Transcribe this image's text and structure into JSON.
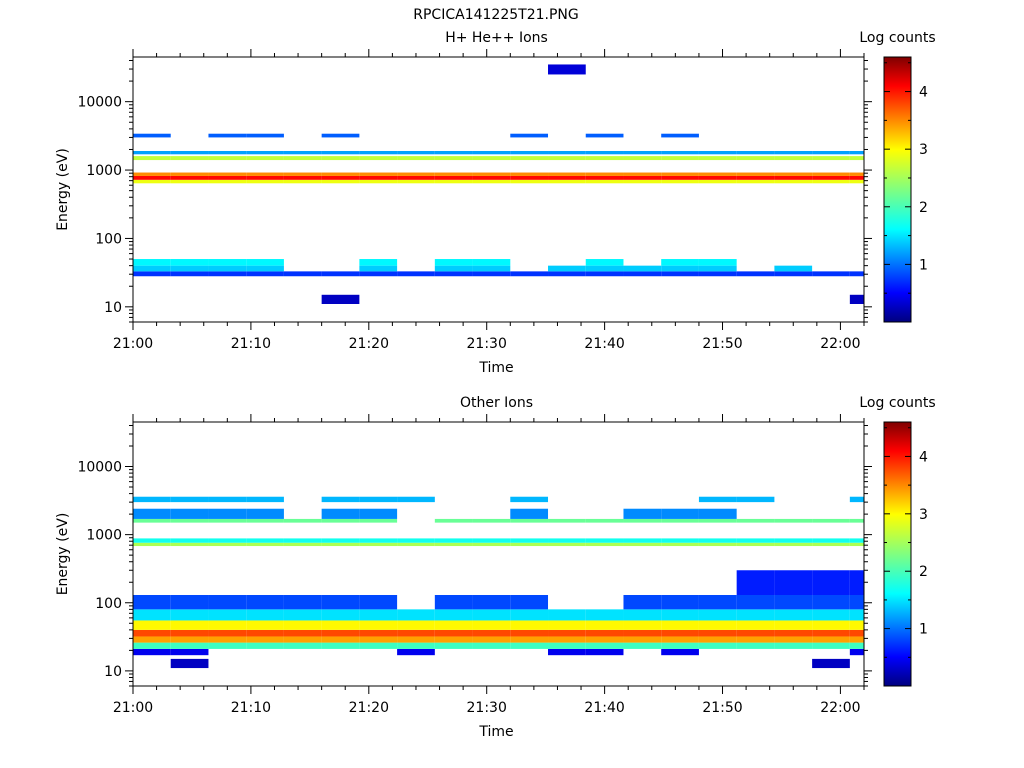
{
  "figure_title": "RPCICA141225T21.PNG",
  "chart_data": [
    {
      "type": "heatmap",
      "title": "H+ He++ Ions",
      "xlabel": "Time",
      "ylabel": "Energy (eV)",
      "x_range": [
        "21:00",
        "22:02"
      ],
      "x_ticks": [
        "21:00",
        "21:10",
        "21:20",
        "21:30",
        "21:40",
        "21:50",
        "22:00"
      ],
      "y_scale": "log",
      "y_range": [
        6,
        45000
      ],
      "y_ticks": [
        "10",
        "100",
        "1000",
        "10000"
      ],
      "colorbar": {
        "label": "Log counts",
        "range": [
          0,
          4.6
        ],
        "ticks": [
          "1",
          "2",
          "3",
          "4"
        ]
      },
      "time_bins_min": [
        0,
        3.2,
        6.4,
        9.6,
        12.8,
        16,
        19.2,
        22.4,
        25.6,
        28.8,
        32,
        35.2,
        38.4,
        41.6,
        44.8,
        48,
        51.2,
        54.4,
        57.6,
        60.8,
        62
      ],
      "energy_bands": [
        {
          "energy_eV": [
            11,
            15
          ],
          "columns": [
            5,
            19
          ],
          "log_counts": 0.3
        },
        {
          "energy_eV": [
            28,
            33
          ],
          "columns": [
            0,
            1,
            2,
            3,
            4,
            5,
            6,
            7,
            8,
            9,
            10,
            11,
            12,
            13,
            14,
            15,
            16,
            17,
            18,
            19
          ],
          "log_counts": 0.8
        },
        {
          "energy_eV": [
            33,
            40
          ],
          "columns": [
            0,
            1,
            2,
            3,
            6,
            8,
            9,
            11,
            12,
            13,
            14,
            15,
            17
          ],
          "log_counts": 1.5
        },
        {
          "energy_eV": [
            40,
            50
          ],
          "columns": [
            0,
            1,
            2,
            3,
            6,
            8,
            9,
            12,
            14,
            15
          ],
          "log_counts": 1.7
        },
        {
          "energy_eV": [
            640,
            720
          ],
          "columns": [
            0,
            1,
            2,
            3,
            4,
            5,
            6,
            7,
            8,
            9,
            10,
            11,
            12,
            13,
            14,
            15,
            16,
            17,
            18,
            19
          ],
          "log_counts": 2.8
        },
        {
          "energy_eV": [
            720,
            820
          ],
          "columns": [
            0,
            1,
            2,
            3,
            4,
            5,
            6,
            7,
            8,
            9,
            10,
            11,
            12,
            13,
            14,
            15,
            16,
            17,
            18,
            19
          ],
          "log_counts": 4.0
        },
        {
          "energy_eV": [
            820,
            920
          ],
          "columns": [
            0,
            1,
            2,
            3,
            4,
            5,
            6,
            7,
            8,
            9,
            10,
            11,
            12,
            13,
            14,
            15,
            16,
            17,
            18,
            19
          ],
          "log_counts": 3.4
        },
        {
          "energy_eV": [
            1400,
            1600
          ],
          "columns": [
            0,
            1,
            2,
            3,
            4,
            5,
            6,
            7,
            8,
            9,
            10,
            11,
            12,
            13,
            14,
            15,
            16,
            17,
            18,
            19
          ],
          "log_counts": 2.6
        },
        {
          "energy_eV": [
            1700,
            1900
          ],
          "columns": [
            0,
            1,
            2,
            3,
            4,
            5,
            6,
            7,
            8,
            9,
            10,
            11,
            12,
            13,
            14,
            15,
            16,
            17,
            18,
            19
          ],
          "log_counts": 1.3
        },
        {
          "energy_eV": [
            3000,
            3400
          ],
          "columns": [
            0,
            2,
            3,
            5,
            10,
            12,
            14
          ],
          "log_counts": 1.0
        },
        {
          "energy_eV": [
            25000,
            35000
          ],
          "columns": [
            11
          ],
          "log_counts": 0.4
        }
      ]
    },
    {
      "type": "heatmap",
      "title": "Other Ions",
      "xlabel": "Time",
      "ylabel": "Energy (eV)",
      "x_range": [
        "21:00",
        "22:02"
      ],
      "x_ticks": [
        "21:00",
        "21:10",
        "21:20",
        "21:30",
        "21:40",
        "21:50",
        "22:00"
      ],
      "y_scale": "log",
      "y_range": [
        6,
        45000
      ],
      "y_ticks": [
        "10",
        "100",
        "1000",
        "10000"
      ],
      "colorbar": {
        "label": "Log counts",
        "range": [
          0,
          4.6
        ],
        "ticks": [
          "1",
          "2",
          "3",
          "4"
        ]
      },
      "time_bins_min": [
        0,
        3.2,
        6.4,
        9.6,
        12.8,
        16,
        19.2,
        22.4,
        25.6,
        28.8,
        32,
        35.2,
        38.4,
        41.6,
        44.8,
        48,
        51.2,
        54.4,
        57.6,
        60.8,
        62
      ],
      "energy_bands": [
        {
          "energy_eV": [
            11,
            15
          ],
          "columns": [
            1,
            18
          ],
          "log_counts": 0.3
        },
        {
          "energy_eV": [
            17,
            21
          ],
          "columns": [
            0,
            1,
            7,
            11,
            12,
            14,
            19
          ],
          "log_counts": 0.5
        },
        {
          "energy_eV": [
            21,
            26
          ],
          "columns": [
            0,
            1,
            2,
            3,
            4,
            5,
            6,
            7,
            8,
            9,
            10,
            11,
            12,
            13,
            14,
            15,
            16,
            17,
            18,
            19
          ],
          "log_counts": 2.0
        },
        {
          "energy_eV": [
            26,
            32
          ],
          "columns": [
            0,
            1,
            2,
            3,
            4,
            5,
            6,
            7,
            8,
            9,
            10,
            11,
            12,
            13,
            14,
            15,
            16,
            17,
            18,
            19
          ],
          "log_counts": 3.3
        },
        {
          "energy_eV": [
            32,
            40
          ],
          "columns": [
            0,
            1,
            2,
            3,
            4,
            5,
            6,
            7,
            8,
            9,
            10,
            11,
            12,
            13,
            14,
            15,
            16,
            17,
            18,
            19
          ],
          "log_counts": 3.7
        },
        {
          "energy_eV": [
            40,
            55
          ],
          "columns": [
            0,
            1,
            2,
            3,
            4,
            5,
            6,
            7,
            8,
            9,
            10,
            11,
            12,
            13,
            14,
            15,
            16,
            17,
            18,
            19
          ],
          "log_counts": 2.9
        },
        {
          "energy_eV": [
            55,
            80
          ],
          "columns": [
            0,
            1,
            2,
            3,
            4,
            5,
            6,
            7,
            8,
            9,
            10,
            11,
            12,
            13,
            14,
            15,
            16,
            17,
            18,
            19
          ],
          "log_counts": 1.6
        },
        {
          "energy_eV": [
            80,
            130
          ],
          "columns": [
            0,
            1,
            2,
            3,
            4,
            5,
            6,
            8,
            9,
            10,
            13,
            14,
            15,
            16,
            17,
            18,
            19
          ],
          "log_counts": 0.9
        },
        {
          "energy_eV": [
            130,
            300
          ],
          "columns": [
            16,
            17,
            18,
            19
          ],
          "log_counts": 0.7
        },
        {
          "energy_eV": [
            680,
            760
          ],
          "columns": [
            0,
            1,
            2,
            3,
            4,
            5,
            6,
            7,
            8,
            9,
            10,
            11,
            12,
            13,
            14,
            15,
            16,
            17,
            18,
            19
          ],
          "log_counts": 2.5
        },
        {
          "energy_eV": [
            760,
            880
          ],
          "columns": [
            0,
            1,
            2,
            3,
            4,
            5,
            6,
            7,
            8,
            9,
            10,
            11,
            12,
            13,
            14,
            15,
            16,
            17,
            18,
            19
          ],
          "log_counts": 1.8
        },
        {
          "energy_eV": [
            1500,
            1700
          ],
          "columns": [
            0,
            1,
            2,
            3,
            4,
            5,
            6,
            8,
            9,
            10,
            11,
            12,
            13,
            14,
            15,
            16,
            17,
            18,
            19
          ],
          "log_counts": 2.2
        },
        {
          "energy_eV": [
            1700,
            2400
          ],
          "columns": [
            0,
            1,
            2,
            3,
            5,
            6,
            10,
            13,
            14,
            15
          ],
          "log_counts": 1.2
        },
        {
          "energy_eV": [
            3000,
            3600
          ],
          "columns": [
            0,
            1,
            2,
            3,
            5,
            6,
            7,
            10,
            15,
            16,
            19
          ],
          "log_counts": 1.4
        }
      ]
    }
  ]
}
